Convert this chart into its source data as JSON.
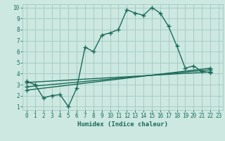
{
  "bg_color": "#cce8e0",
  "grid_color": "#a0c8c0",
  "line_color": "#1a6b5a",
  "xlabel": "Humidex (Indice chaleur)",
  "xlim": [
    -0.5,
    23.5
  ],
  "ylim": [
    0.7,
    10.3
  ],
  "xticks": [
    0,
    1,
    2,
    3,
    4,
    5,
    6,
    7,
    8,
    9,
    10,
    11,
    12,
    13,
    14,
    15,
    16,
    17,
    18,
    19,
    20,
    21,
    22,
    23
  ],
  "yticks": [
    1,
    2,
    3,
    4,
    5,
    6,
    7,
    8,
    9,
    10
  ],
  "line1_x": [
    0,
    1,
    2,
    3,
    4,
    5,
    6,
    7,
    8,
    9,
    10,
    11,
    12,
    13,
    14,
    15,
    16,
    17,
    18,
    19,
    20,
    21,
    22
  ],
  "line1_y": [
    3.3,
    3.0,
    1.8,
    2.0,
    2.1,
    1.0,
    2.7,
    6.4,
    6.0,
    7.5,
    7.7,
    8.0,
    9.8,
    9.5,
    9.3,
    10.0,
    9.5,
    8.3,
    6.5,
    4.5,
    4.7,
    4.2,
    4.1
  ],
  "line2_x": [
    0,
    22
  ],
  "line2_y": [
    3.2,
    4.15
  ],
  "line3_x": [
    0,
    22
  ],
  "line3_y": [
    2.5,
    4.5
  ],
  "line4_x": [
    0,
    22
  ],
  "line4_y": [
    2.8,
    4.35
  ]
}
